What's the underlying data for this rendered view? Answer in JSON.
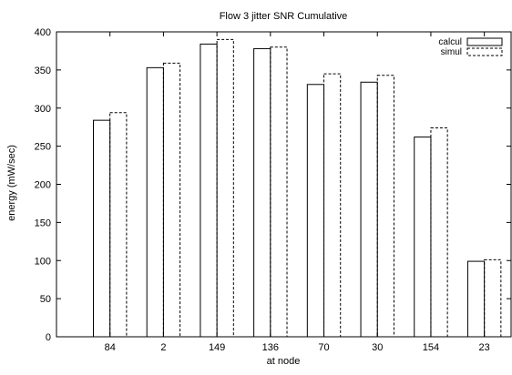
{
  "chart_data": {
    "type": "bar",
    "title": "Flow 3 jitter SNR Cumulative",
    "xlabel": "at node",
    "ylabel": "energy (mW/sec)",
    "categories": [
      "84",
      "2",
      "149",
      "136",
      "70",
      "30",
      "154",
      "23"
    ],
    "ylim": [
      0,
      400
    ],
    "yticks": [
      0,
      50,
      100,
      150,
      200,
      250,
      300,
      350,
      400
    ],
    "grid": false,
    "legend_position": "top-right",
    "series": [
      {
        "name": "calcul",
        "values": [
          284,
          353,
          384,
          378,
          331,
          334,
          262,
          99
        ],
        "style": "solid"
      },
      {
        "name": "simul",
        "values": [
          294,
          359,
          390,
          380,
          345,
          343,
          274,
          101
        ],
        "style": "dashed"
      }
    ]
  }
}
